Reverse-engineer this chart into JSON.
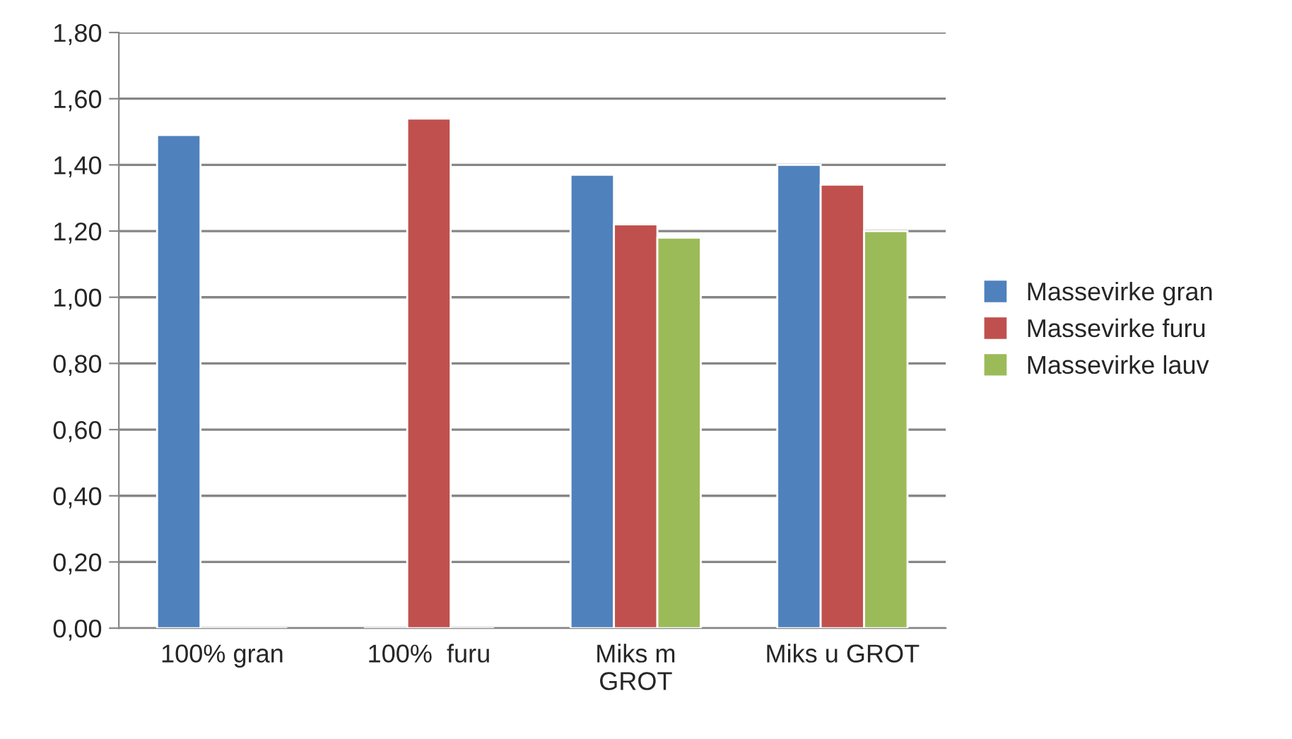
{
  "chart_data": {
    "type": "bar",
    "categories": [
      "100% gran",
      "100%  furu",
      "Miks m\nGROT",
      "Miks u GROT"
    ],
    "series": [
      {
        "name": "Massevirke gran",
        "color": "#4f81bd",
        "values": [
          1.49,
          null,
          1.37,
          1.4
        ]
      },
      {
        "name": "Massevirke furu",
        "color": "#c0504d",
        "values": [
          null,
          1.54,
          1.22,
          1.34
        ]
      },
      {
        "name": "Massevirke lauv",
        "color": "#9bbb59",
        "values": [
          null,
          null,
          1.18,
          1.2
        ]
      }
    ],
    "ylim": [
      0,
      1.8
    ],
    "yticks": [
      {
        "value": 0,
        "label": "0,00"
      },
      {
        "value": 0.2,
        "label": "0,20"
      },
      {
        "value": 0.4,
        "label": "0,40"
      },
      {
        "value": 0.6,
        "label": "0,60"
      },
      {
        "value": 0.8,
        "label": "0,80"
      },
      {
        "value": 1.0,
        "label": "1,00"
      },
      {
        "value": 1.2,
        "label": "1,20"
      },
      {
        "value": 1.4,
        "label": "1,40"
      },
      {
        "value": 1.6,
        "label": "1,60"
      },
      {
        "value": 1.8,
        "label": "1,80"
      }
    ],
    "grid": "y",
    "legend": "right"
  }
}
